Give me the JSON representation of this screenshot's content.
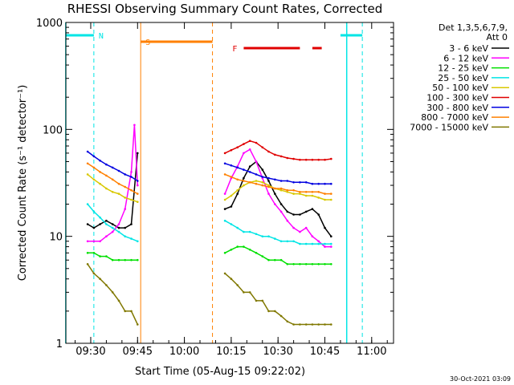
{
  "chart_data": {
    "type": "line",
    "title": "RHESSI Observing Summary Count Rates, Corrected",
    "xlabel": "Start Time (05-Aug-15 09:22:02)",
    "ylabel": "Corrected Count Rate (s⁻¹ detector⁻¹)",
    "y_scale": "log",
    "ylim": [
      1,
      1000
    ],
    "x_ticks": [
      "09:30",
      "09:45",
      "10:00",
      "10:15",
      "10:30",
      "10:45",
      "11:00"
    ],
    "y_ticks": [
      "1",
      "10",
      "100",
      "1000"
    ],
    "legend_header": [
      "Det 1,3,5,6,7,9,",
      "Att 0"
    ],
    "timestamp": "30-Oct-2021 03:09",
    "flags": [
      {
        "label": "N",
        "color": "#00e5e5",
        "segments": [
          [
            "09:22",
            "09:31"
          ],
          [
            "10:50",
            "10:57"
          ]
        ],
        "markers": [
          "09:31",
          "10:57"
        ]
      },
      {
        "label": "S",
        "color": "#ff8000",
        "segments": [
          [
            "09:46",
            "10:09"
          ]
        ],
        "markers": [
          "09:46",
          "10:09"
        ]
      },
      {
        "label": "F",
        "color": "#e00000",
        "segments": [
          [
            "10:19",
            "10:37"
          ],
          [
            "10:41",
            "10:44"
          ]
        ],
        "markers": []
      }
    ],
    "night_edges": [
      "09:22",
      "10:52"
    ],
    "series": [
      {
        "name": "3 - 6 keV",
        "color": "#000000",
        "x": [
          "09:29",
          "09:31",
          "09:33",
          "09:35",
          "09:37",
          "09:39",
          "09:41",
          "09:43",
          "09:45",
          "10:13",
          "10:15",
          "10:17",
          "10:19",
          "10:21",
          "10:23",
          "10:25",
          "10:27",
          "10:29",
          "10:31",
          "10:33",
          "10:35",
          "10:37",
          "10:39",
          "10:41",
          "10:43",
          "10:45",
          "10:47"
        ],
        "y": [
          13,
          12,
          13,
          14,
          13,
          12,
          12,
          13,
          60,
          18,
          19,
          25,
          35,
          45,
          50,
          42,
          33,
          25,
          20,
          17,
          16,
          16,
          17,
          18,
          16,
          12,
          10
        ]
      },
      {
        "name": "6 - 12 keV",
        "color": "#ff00ff",
        "x": [
          "09:29",
          "09:31",
          "09:33",
          "09:35",
          "09:37",
          "09:39",
          "09:41",
          "09:43",
          "09:44",
          "09:45",
          "10:13",
          "10:15",
          "10:17",
          "10:19",
          "10:21",
          "10:23",
          "10:25",
          "10:27",
          "10:29",
          "10:31",
          "10:33",
          "10:35",
          "10:37",
          "10:39",
          "10:41",
          "10:43",
          "10:45",
          "10:47"
        ],
        "y": [
          9,
          9,
          9,
          10,
          11,
          13,
          18,
          40,
          110,
          30,
          25,
          35,
          45,
          60,
          65,
          50,
          35,
          25,
          20,
          17,
          14,
          12,
          11,
          12,
          10,
          9,
          8,
          8
        ]
      },
      {
        "name": "12 - 25 keV",
        "color": "#00e000",
        "x": [
          "09:29",
          "09:31",
          "09:33",
          "09:35",
          "09:37",
          "09:39",
          "09:41",
          "09:43",
          "09:45",
          "10:13",
          "10:15",
          "10:17",
          "10:19",
          "10:21",
          "10:23",
          "10:25",
          "10:27",
          "10:29",
          "10:31",
          "10:33",
          "10:35",
          "10:37",
          "10:39",
          "10:41",
          "10:43",
          "10:45",
          "10:47"
        ],
        "y": [
          7,
          7,
          6.5,
          6.5,
          6,
          6,
          6,
          6,
          6,
          7,
          7.5,
          8,
          8,
          7.5,
          7,
          6.5,
          6,
          6,
          6,
          5.5,
          5.5,
          5.5,
          5.5,
          5.5,
          5.5,
          5.5,
          5.5
        ]
      },
      {
        "name": "25 - 50 keV",
        "color": "#00e5e5",
        "x": [
          "09:29",
          "09:31",
          "09:33",
          "09:35",
          "09:37",
          "09:39",
          "09:41",
          "09:43",
          "09:45",
          "10:13",
          "10:15",
          "10:17",
          "10:19",
          "10:21",
          "10:23",
          "10:25",
          "10:27",
          "10:29",
          "10:31",
          "10:33",
          "10:35",
          "10:37",
          "10:39",
          "10:41",
          "10:43",
          "10:45",
          "10:47"
        ],
        "y": [
          20,
          17,
          15,
          13,
          12,
          11,
          10,
          9.5,
          9,
          14,
          13,
          12,
          11,
          11,
          10.5,
          10,
          10,
          9.5,
          9,
          9,
          9,
          8.5,
          8.5,
          8.5,
          8.5,
          8.5,
          8.5
        ]
      },
      {
        "name": "50 - 100 keV",
        "color": "#d8c800",
        "x": [
          "09:29",
          "09:31",
          "09:33",
          "09:35",
          "09:37",
          "09:39",
          "09:41",
          "09:43",
          "09:45",
          "10:13",
          "10:15",
          "10:17",
          "10:19",
          "10:21",
          "10:23",
          "10:25",
          "10:27",
          "10:29",
          "10:31",
          "10:33",
          "10:35",
          "10:37",
          "10:39",
          "10:41",
          "10:43",
          "10:45",
          "10:47"
        ],
        "y": [
          38,
          34,
          31,
          28,
          26,
          25,
          23,
          22,
          21,
          22,
          24,
          27,
          30,
          32,
          33,
          32,
          30,
          28,
          27,
          26,
          25,
          25,
          24,
          24,
          23,
          22,
          22
        ]
      },
      {
        "name": "100 - 300 keV",
        "color": "#e00000",
        "x": [
          "10:13",
          "10:15",
          "10:17",
          "10:19",
          "10:21",
          "10:23",
          "10:25",
          "10:27",
          "10:29",
          "10:31",
          "10:33",
          "10:35",
          "10:37",
          "10:39",
          "10:41",
          "10:43",
          "10:45",
          "10:47"
        ],
        "y": [
          60,
          64,
          68,
          73,
          78,
          75,
          68,
          62,
          58,
          56,
          54,
          53,
          52,
          52,
          52,
          52,
          52,
          53
        ]
      },
      {
        "name": "300 - 800 keV",
        "color": "#0000e0",
        "x": [
          "09:29",
          "09:31",
          "09:33",
          "09:35",
          "09:37",
          "09:39",
          "09:41",
          "09:43",
          "09:45",
          "10:13",
          "10:15",
          "10:17",
          "10:19",
          "10:21",
          "10:23",
          "10:25",
          "10:27",
          "10:29",
          "10:31",
          "10:33",
          "10:35",
          "10:37",
          "10:39",
          "10:41",
          "10:43",
          "10:45",
          "10:47"
        ],
        "y": [
          62,
          56,
          51,
          47,
          44,
          41,
          38,
          36,
          33,
          48,
          46,
          44,
          42,
          40,
          38,
          36,
          35,
          34,
          33,
          33,
          32,
          32,
          32,
          31,
          31,
          31,
          31
        ]
      },
      {
        "name": "800 - 7000 keV",
        "color": "#ff8000",
        "x": [
          "09:29",
          "09:31",
          "09:33",
          "09:35",
          "09:37",
          "09:39",
          "09:41",
          "09:43",
          "09:45",
          "10:13",
          "10:15",
          "10:17",
          "10:19",
          "10:21",
          "10:23",
          "10:25",
          "10:27",
          "10:29",
          "10:31",
          "10:33",
          "10:35",
          "10:37",
          "10:39",
          "10:41",
          "10:43",
          "10:45",
          "10:47"
        ],
        "y": [
          48,
          44,
          40,
          37,
          34,
          31,
          29,
          27,
          25,
          38,
          36,
          34,
          33,
          32,
          31,
          30,
          29,
          28,
          28,
          27,
          27,
          26,
          26,
          26,
          26,
          25,
          25
        ]
      },
      {
        "name": "7000 - 15000 keV",
        "color": "#807800",
        "x": [
          "09:29",
          "09:31",
          "09:33",
          "09:35",
          "09:37",
          "09:39",
          "09:41",
          "09:43",
          "09:45",
          "10:13",
          "10:15",
          "10:17",
          "10:19",
          "10:21",
          "10:23",
          "10:25",
          "10:27",
          "10:29",
          "10:31",
          "10:33",
          "10:35",
          "10:37",
          "10:39",
          "10:41",
          "10:43",
          "10:45",
          "10:47"
        ],
        "y": [
          5.5,
          4.5,
          4,
          3.5,
          3,
          2.5,
          2,
          2,
          1.5,
          4.5,
          4,
          3.5,
          3,
          3,
          2.5,
          2.5,
          2,
          2,
          1.8,
          1.6,
          1.5,
          1.5,
          1.5,
          1.5,
          1.5,
          1.5,
          1.5
        ]
      }
    ]
  }
}
